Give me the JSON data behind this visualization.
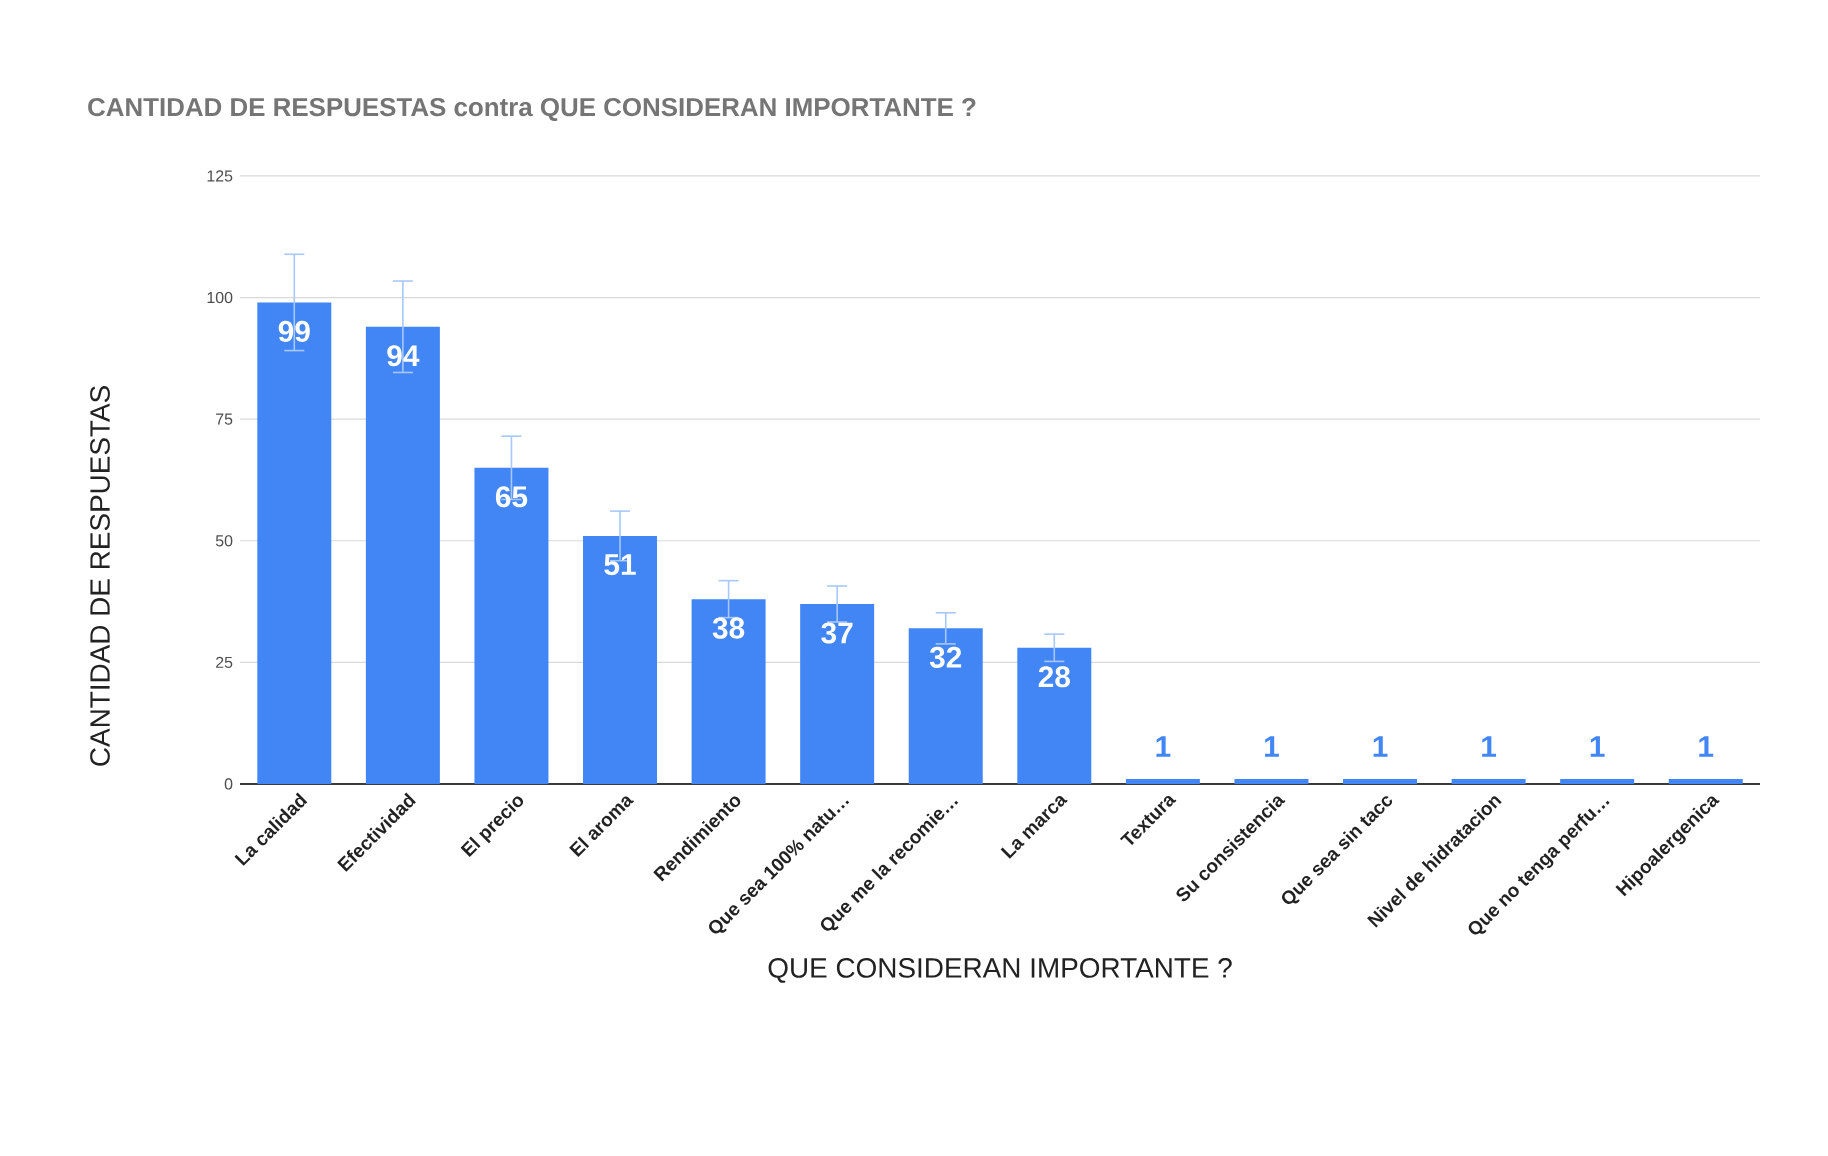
{
  "chart_data": {
    "type": "bar",
    "title": "CANTIDAD DE RESPUESTAS contra QUE CONSIDERAN IMPORTANTE ?",
    "xlabel": "QUE CONSIDERAN IMPORTANTE ?",
    "ylabel": "CANTIDAD DE RESPUESTAS",
    "categories": [
      "La calidad",
      "Efectividad",
      "El precio",
      "El aroma",
      "Rendimiento",
      "Que sea 100% natu…",
      "Que me la recomie…",
      "La marca",
      "Textura",
      "Su consistencia",
      "Que sea sin tacc",
      "Nivel de hidratacion",
      "Que no tenga perfu…",
      "Hipoalergenica"
    ],
    "values": [
      99,
      94,
      65,
      51,
      38,
      37,
      32,
      28,
      1,
      1,
      1,
      1,
      1,
      1
    ],
    "errors": [
      9.9,
      9.4,
      6.5,
      5.1,
      3.8,
      3.7,
      3.2,
      2.8,
      null,
      null,
      null,
      null,
      null,
      null
    ],
    "color": "#4285f4",
    "ylim": [
      0,
      125
    ],
    "yticks": [
      0,
      25,
      50,
      75,
      100,
      125
    ],
    "grid": "y",
    "data_labels": true
  }
}
